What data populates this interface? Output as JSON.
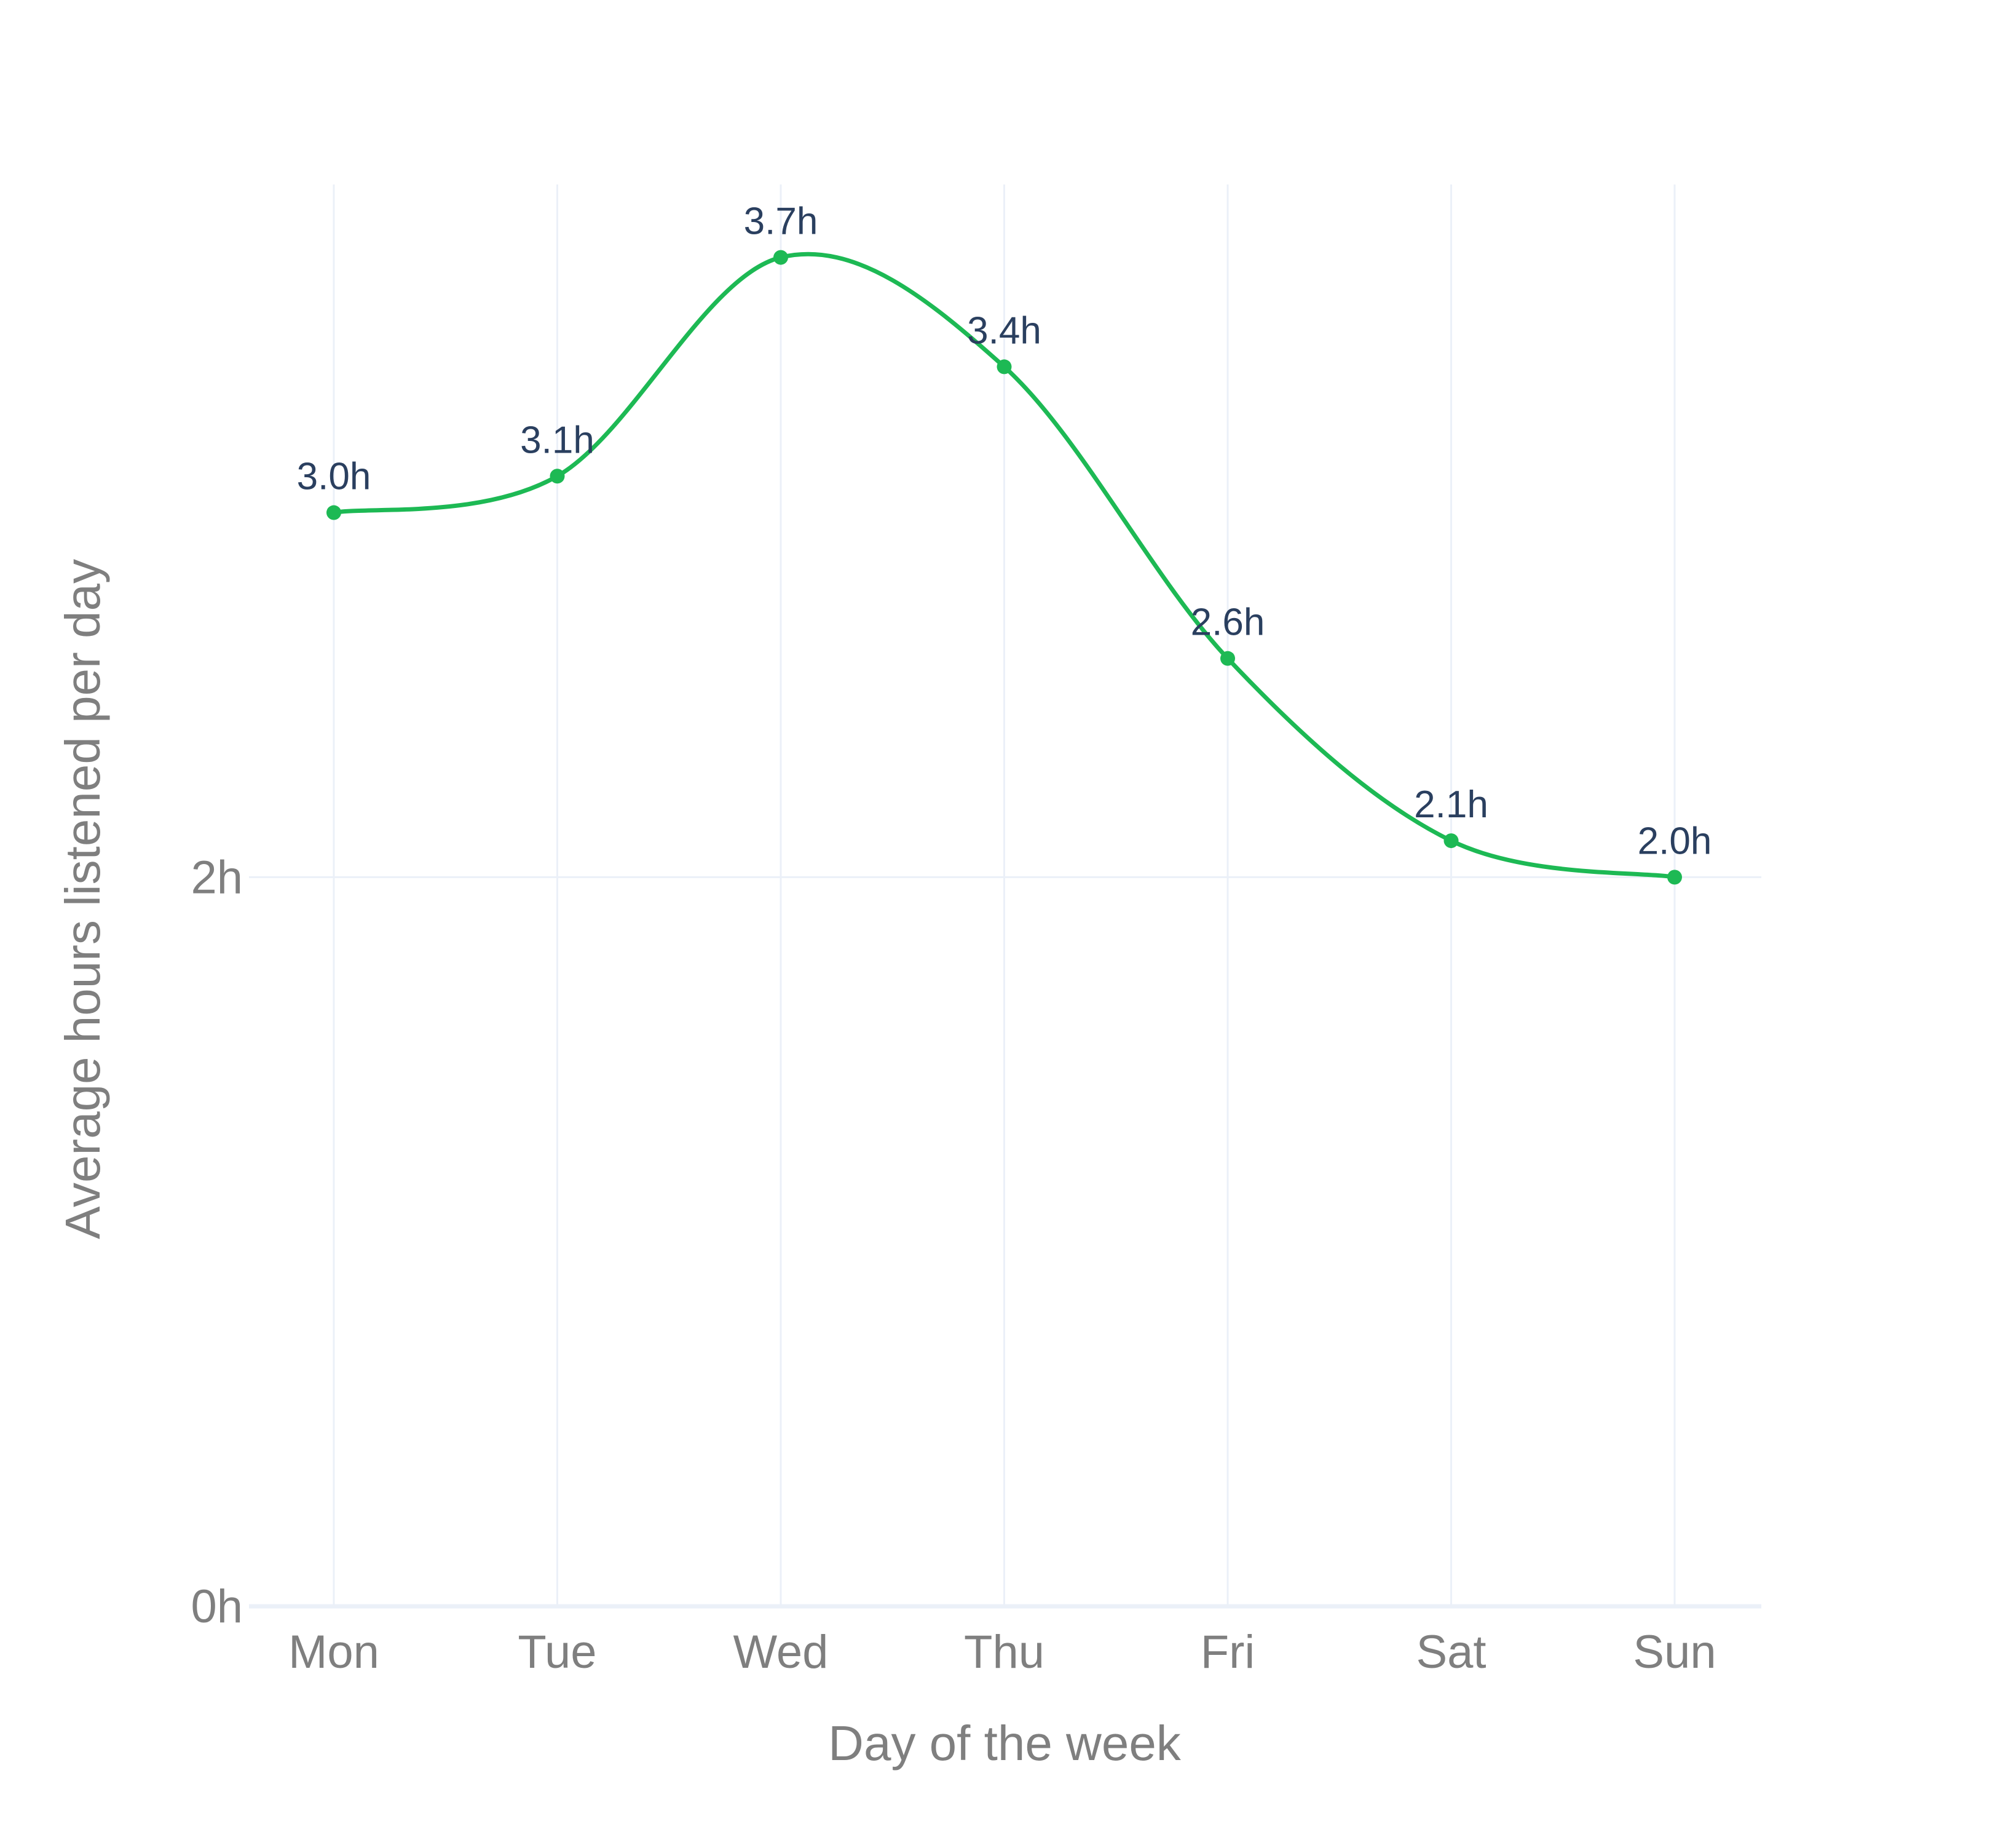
{
  "chart_data": {
    "type": "line",
    "categories": [
      "Mon",
      "Tue",
      "Wed",
      "Thu",
      "Fri",
      "Sat",
      "Sun"
    ],
    "series": [
      {
        "values": [
          3.0,
          3.1,
          3.7,
          3.4,
          2.6,
          2.1,
          2.0
        ],
        "labels": [
          "3.0h",
          "3.1h",
          "3.7h",
          "3.4h",
          "2.6h",
          "2.1h",
          "2.0h"
        ],
        "color": "#1db954",
        "line_shape": "spline"
      }
    ],
    "title": "",
    "xlabel": "Day of the week",
    "ylabel": "Average hours listened per day",
    "ylim": [
      0,
      3.9
    ],
    "yticks": [
      0,
      2
    ],
    "ytick_labels": [
      "0h",
      "2h"
    ],
    "grid": true,
    "legend": "none",
    "colors": {
      "line": "#1db954",
      "data_label": "#2a3f5f",
      "axis_text": "#7f7f7f",
      "grid": "#ebf0f8",
      "zero_line": "#ebf0f8"
    }
  }
}
